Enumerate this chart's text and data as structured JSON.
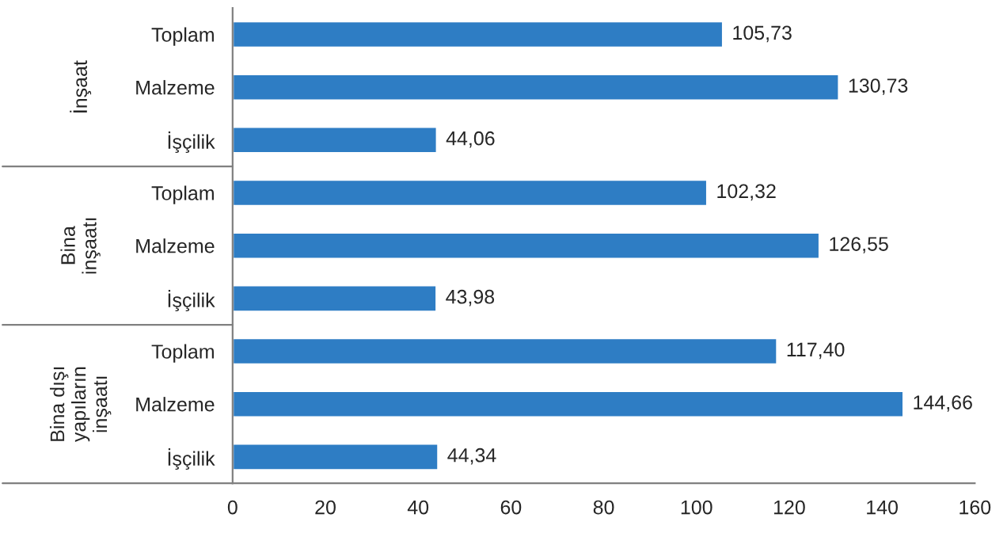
{
  "chart_data": {
    "type": "bar",
    "orientation": "horizontal",
    "categories": [
      "Toplam",
      "Malzeme",
      "İşçilik",
      "Toplam",
      "Malzeme",
      "İşçilik",
      "Toplam",
      "Malzeme",
      "İşçilik"
    ],
    "values": [
      105.73,
      130.73,
      44.06,
      102.32,
      126.55,
      43.98,
      117.4,
      144.66,
      44.34
    ],
    "value_labels": [
      "105,73",
      "130,73",
      "44,06",
      "102,32",
      "126,55",
      "43,98",
      "117,40",
      "144,66",
      "44,34"
    ],
    "color": "#2e7dc4",
    "xlim": [
      0,
      160
    ],
    "xticks": [
      0,
      20,
      40,
      60,
      80,
      100,
      120,
      140,
      160
    ],
    "annotations": [
      "İnşaat",
      "Bina\ninşaatı",
      "Bina dışı\nyapıların\ninşaatı"
    ],
    "grid": false,
    "legend": false
  }
}
